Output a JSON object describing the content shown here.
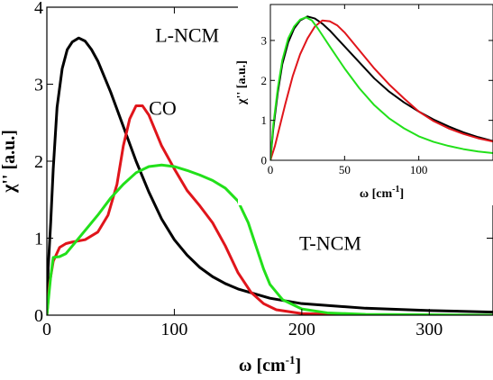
{
  "chart_data": [
    {
      "type": "line",
      "xlabel": "ω [cm",
      "xlabel_sup": "-1",
      "xlabel_end": "]",
      "ylabel": "χ'' [a.u.]",
      "xlim": [
        0,
        350
      ],
      "ylim": [
        0,
        4
      ],
      "xticks": [
        0,
        100,
        200,
        300
      ],
      "yticks": [
        0,
        1,
        2,
        3,
        4
      ],
      "grid": false,
      "series": [
        {
          "name": "L-NCM",
          "color": "#000000",
          "points": [
            [
              0,
              0
            ],
            [
              1,
              0.6
            ],
            [
              3,
              1.2
            ],
            [
              5,
              1.9
            ],
            [
              8,
              2.7
            ],
            [
              12,
              3.2
            ],
            [
              16,
              3.45
            ],
            [
              20,
              3.55
            ],
            [
              25,
              3.6
            ],
            [
              30,
              3.56
            ],
            [
              35,
              3.45
            ],
            [
              40,
              3.3
            ],
            [
              50,
              2.9
            ],
            [
              60,
              2.45
            ],
            [
              70,
              2.0
            ],
            [
              80,
              1.6
            ],
            [
              90,
              1.25
            ],
            [
              100,
              0.98
            ],
            [
              110,
              0.78
            ],
            [
              120,
              0.62
            ],
            [
              130,
              0.5
            ],
            [
              140,
              0.41
            ],
            [
              150,
              0.34
            ],
            [
              175,
              0.22
            ],
            [
              200,
              0.15
            ],
            [
              250,
              0.09
            ],
            [
              300,
              0.06
            ],
            [
              350,
              0.04
            ]
          ]
        },
        {
          "name": "CO",
          "color": "#e0151b",
          "points": [
            [
              0,
              0
            ],
            [
              2,
              0.4
            ],
            [
              5,
              0.7
            ],
            [
              10,
              0.88
            ],
            [
              15,
              0.93
            ],
            [
              20,
              0.95
            ],
            [
              30,
              0.98
            ],
            [
              40,
              1.08
            ],
            [
              48,
              1.3
            ],
            [
              55,
              1.7
            ],
            [
              60,
              2.2
            ],
            [
              65,
              2.55
            ],
            [
              70,
              2.72
            ],
            [
              75,
              2.72
            ],
            [
              80,
              2.6
            ],
            [
              90,
              2.2
            ],
            [
              100,
              1.9
            ],
            [
              110,
              1.62
            ],
            [
              120,
              1.42
            ],
            [
              130,
              1.2
            ],
            [
              140,
              0.9
            ],
            [
              150,
              0.55
            ],
            [
              160,
              0.3
            ],
            [
              170,
              0.15
            ],
            [
              180,
              0.07
            ],
            [
              200,
              0.02
            ],
            [
              250,
              0
            ],
            [
              350,
              0
            ]
          ]
        },
        {
          "name": "T-NCM",
          "color": "#22e01a",
          "points": [
            [
              0,
              0
            ],
            [
              3,
              0.5
            ],
            [
              5,
              0.75
            ],
            [
              10,
              0.76
            ],
            [
              15,
              0.8
            ],
            [
              20,
              0.9
            ],
            [
              30,
              1.1
            ],
            [
              40,
              1.3
            ],
            [
              50,
              1.52
            ],
            [
              60,
              1.7
            ],
            [
              70,
              1.85
            ],
            [
              80,
              1.93
            ],
            [
              90,
              1.95
            ],
            [
              100,
              1.93
            ],
            [
              110,
              1.88
            ],
            [
              120,
              1.82
            ],
            [
              130,
              1.75
            ],
            [
              140,
              1.65
            ],
            [
              150,
              1.48
            ],
            [
              158,
              1.2
            ],
            [
              165,
              0.85
            ],
            [
              170,
              0.6
            ],
            [
              175,
              0.4
            ],
            [
              185,
              0.2
            ],
            [
              200,
              0.08
            ],
            [
              220,
              0.03
            ],
            [
              250,
              0.01
            ],
            [
              350,
              0
            ]
          ]
        }
      ],
      "annotations": [
        {
          "text": "L-NCM",
          "x": 85,
          "y": 3.55
        },
        {
          "text": "CO",
          "x": 80,
          "y": 2.6
        },
        {
          "text": "T-NCM",
          "x": 198,
          "y": 0.85
        }
      ]
    },
    {
      "type": "line",
      "xlabel": "ω  [cm",
      "xlabel_sup": "-1",
      "xlabel_end": "]",
      "ylabel": "χ'' [a.u.]",
      "xlim": [
        0,
        150
      ],
      "ylim": [
        0,
        3.9
      ],
      "xticks": [
        0,
        50,
        100
      ],
      "yticks": [
        0,
        1,
        2,
        3
      ],
      "grid": false,
      "series": [
        {
          "color": "#000000",
          "points": [
            [
              0,
              0
            ],
            [
              2,
              0.8
            ],
            [
              5,
              1.7
            ],
            [
              8,
              2.4
            ],
            [
              12,
              2.95
            ],
            [
              16,
              3.3
            ],
            [
              20,
              3.5
            ],
            [
              25,
              3.6
            ],
            [
              30,
              3.55
            ],
            [
              35,
              3.42
            ],
            [
              40,
              3.25
            ],
            [
              50,
              2.85
            ],
            [
              60,
              2.45
            ],
            [
              70,
              2.05
            ],
            [
              80,
              1.72
            ],
            [
              90,
              1.45
            ],
            [
              100,
              1.22
            ],
            [
              110,
              1.02
            ],
            [
              120,
              0.85
            ],
            [
              130,
              0.7
            ],
            [
              140,
              0.58
            ],
            [
              150,
              0.48
            ]
          ]
        },
        {
          "color": "#e0151b",
          "points": [
            [
              0,
              0
            ],
            [
              3,
              0.35
            ],
            [
              6,
              0.8
            ],
            [
              10,
              1.4
            ],
            [
              15,
              2.1
            ],
            [
              20,
              2.65
            ],
            [
              25,
              3.05
            ],
            [
              30,
              3.35
            ],
            [
              35,
              3.5
            ],
            [
              40,
              3.48
            ],
            [
              45,
              3.38
            ],
            [
              50,
              3.2
            ],
            [
              60,
              2.75
            ],
            [
              70,
              2.3
            ],
            [
              80,
              1.9
            ],
            [
              90,
              1.55
            ],
            [
              100,
              1.22
            ],
            [
              110,
              0.98
            ],
            [
              120,
              0.8
            ],
            [
              130,
              0.66
            ],
            [
              140,
              0.55
            ],
            [
              150,
              0.47
            ]
          ]
        },
        {
          "color": "#22e01a",
          "points": [
            [
              0,
              0
            ],
            [
              2,
              0.9
            ],
            [
              5,
              1.8
            ],
            [
              8,
              2.5
            ],
            [
              12,
              3.05
            ],
            [
              16,
              3.35
            ],
            [
              20,
              3.52
            ],
            [
              24,
              3.58
            ],
            [
              28,
              3.5
            ],
            [
              32,
              3.3
            ],
            [
              40,
              2.85
            ],
            [
              50,
              2.3
            ],
            [
              60,
              1.8
            ],
            [
              70,
              1.38
            ],
            [
              80,
              1.05
            ],
            [
              90,
              0.8
            ],
            [
              100,
              0.6
            ],
            [
              110,
              0.46
            ],
            [
              120,
              0.36
            ],
            [
              130,
              0.28
            ],
            [
              140,
              0.22
            ],
            [
              150,
              0.18
            ]
          ]
        }
      ]
    }
  ]
}
